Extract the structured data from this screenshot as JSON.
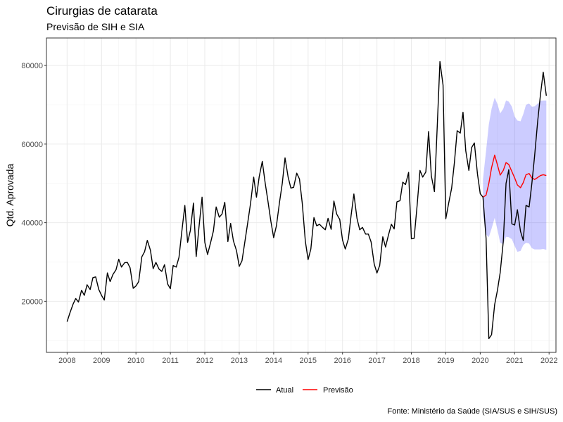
{
  "chart_data": {
    "type": "line",
    "title": "Cirurgias de catarata",
    "subtitle": "Previsão de SIH e SIA",
    "xlabel": "",
    "ylabel": "Qtd. Aprovada",
    "caption": "Fonte: Ministério da Saúde (SIA/SUS e SIH/SUS)",
    "xlim": [
      2007.4,
      2022.2
    ],
    "ylim": [
      7000,
      87000
    ],
    "x_ticks": [
      "2008",
      "2009",
      "2010",
      "2011",
      "2012",
      "2013",
      "2014",
      "2015",
      "2016",
      "2017",
      "2018",
      "2019",
      "2020",
      "2021",
      "2022"
    ],
    "y_ticks": [
      20000,
      40000,
      60000,
      80000
    ],
    "y_tick_labels": [
      "20000",
      "40000",
      "60000",
      "80000"
    ],
    "grid": true,
    "legend_position": "bottom",
    "colors": {
      "actual": "#000000",
      "forecast": "#ff0000",
      "interval": "#0000ff"
    },
    "series": [
      {
        "name": "Atual",
        "x": [
          2008.0,
          2008.08,
          2008.17,
          2008.25,
          2008.33,
          2008.42,
          2008.5,
          2008.58,
          2008.67,
          2008.75,
          2008.83,
          2008.92,
          2009.0,
          2009.08,
          2009.17,
          2009.25,
          2009.33,
          2009.42,
          2009.5,
          2009.58,
          2009.67,
          2009.75,
          2009.83,
          2009.92,
          2010.0,
          2010.08,
          2010.17,
          2010.25,
          2010.33,
          2010.42,
          2010.5,
          2010.58,
          2010.67,
          2010.75,
          2010.83,
          2010.92,
          2011.0,
          2011.08,
          2011.17,
          2011.25,
          2011.33,
          2011.42,
          2011.5,
          2011.58,
          2011.67,
          2011.75,
          2011.83,
          2011.92,
          2012.0,
          2012.08,
          2012.17,
          2012.25,
          2012.33,
          2012.42,
          2012.5,
          2012.58,
          2012.67,
          2012.75,
          2012.83,
          2012.92,
          2013.0,
          2013.08,
          2013.17,
          2013.25,
          2013.33,
          2013.42,
          2013.5,
          2013.58,
          2013.67,
          2013.75,
          2013.83,
          2013.92,
          2014.0,
          2014.08,
          2014.17,
          2014.25,
          2014.33,
          2014.42,
          2014.5,
          2014.58,
          2014.67,
          2014.75,
          2014.83,
          2014.92,
          2015.0,
          2015.08,
          2015.17,
          2015.25,
          2015.33,
          2015.42,
          2015.5,
          2015.58,
          2015.67,
          2015.75,
          2015.83,
          2015.92,
          2016.0,
          2016.08,
          2016.17,
          2016.25,
          2016.33,
          2016.42,
          2016.5,
          2016.58,
          2016.67,
          2016.75,
          2016.83,
          2016.92,
          2017.0,
          2017.08,
          2017.17,
          2017.25,
          2017.33,
          2017.42,
          2017.5,
          2017.58,
          2017.67,
          2017.75,
          2017.83,
          2017.92,
          2018.0,
          2018.08,
          2018.17,
          2018.25,
          2018.33,
          2018.42,
          2018.5,
          2018.58,
          2018.67,
          2018.75,
          2018.83,
          2018.92,
          2019.0,
          2019.08,
          2019.17,
          2019.25,
          2019.33,
          2019.42,
          2019.5,
          2019.58,
          2019.67,
          2019.75,
          2019.83,
          2019.92,
          2020.0,
          2020.08,
          2020.17,
          2020.25,
          2020.33,
          2020.42,
          2020.5,
          2020.58,
          2020.67,
          2020.75,
          2020.83,
          2020.92,
          2021.0,
          2021.08,
          2021.17,
          2021.25,
          2021.33,
          2021.42,
          2021.5,
          2021.58,
          2021.67,
          2021.75,
          2021.83,
          2021.92
        ],
        "values": [
          14800,
          17000,
          19200,
          20700,
          19800,
          22800,
          21500,
          24200,
          23000,
          26000,
          26200,
          23000,
          21500,
          20300,
          27200,
          25000,
          26800,
          28000,
          30700,
          28700,
          29800,
          29900,
          28500,
          23300,
          23900,
          25000,
          31300,
          32600,
          35500,
          33000,
          28300,
          29900,
          28200,
          27600,
          29300,
          24400,
          23200,
          29100,
          28700,
          31200,
          37600,
          44400,
          35000,
          38000,
          45000,
          31400,
          38800,
          46500,
          35000,
          31900,
          35000,
          37900,
          44000,
          41400,
          42200,
          45200,
          35200,
          39800,
          35400,
          32900,
          28900,
          30300,
          35500,
          40200,
          45000,
          51600,
          46500,
          51700,
          55600,
          50300,
          45700,
          40300,
          36200,
          39200,
          45200,
          50000,
          56500,
          51600,
          48800,
          49000,
          52600,
          51100,
          45000,
          35300,
          30600,
          33300,
          41300,
          39200,
          39600,
          38800,
          38200,
          41100,
          38300,
          45500,
          42200,
          40800,
          35600,
          33300,
          35900,
          41900,
          47300,
          41100,
          38200,
          38800,
          37100,
          37100,
          35100,
          29500,
          27200,
          29100,
          36400,
          33800,
          36700,
          39600,
          38400,
          45300,
          45600,
          50300,
          49700,
          52800,
          35900,
          36000,
          44700,
          53300,
          51600,
          52900,
          63200,
          51900,
          47900,
          64200,
          81000,
          75000,
          41000,
          44800,
          48800,
          55300,
          63400,
          62800,
          68100,
          58300,
          53300,
          59100,
          60300,
          52400,
          47400,
          46500,
          36000,
          10500,
          11500,
          19200,
          22800,
          27300,
          35200,
          50000,
          53500,
          39700,
          39400,
          43300,
          37800,
          35500,
          44400,
          44000,
          50000,
          57000,
          65900,
          72600,
          78300,
          72300
        ]
      },
      {
        "name": "Previsão",
        "x": [
          2020.08,
          2020.17,
          2020.25,
          2020.33,
          2020.42,
          2020.5,
          2020.58,
          2020.67,
          2020.75,
          2020.83,
          2020.92,
          2021.0,
          2021.08,
          2021.17,
          2021.25,
          2021.33,
          2021.42,
          2021.5,
          2021.58,
          2021.67,
          2021.75,
          2021.83,
          2021.92
        ],
        "values": [
          46500,
          47000,
          50000,
          54000,
          57200,
          54700,
          52100,
          53300,
          55300,
          54800,
          53000,
          51400,
          49600,
          48900,
          50200,
          52200,
          52500,
          51400,
          51000,
          51500,
          52000,
          52200,
          52000
        ],
        "lower": [
          42000,
          37000,
          36300,
          38500,
          41200,
          38200,
          34900,
          34500,
          36400,
          36300,
          35800,
          34100,
          32600,
          32800,
          34300,
          34900,
          34700,
          33500,
          33200,
          33200,
          33200,
          33300,
          33100
        ],
        "upper": [
          51000,
          58300,
          65000,
          69000,
          71800,
          70200,
          67800,
          69000,
          71100,
          70800,
          69500,
          67000,
          66000,
          65800,
          67600,
          70000,
          70300,
          69500,
          69600,
          70300,
          71000,
          71100,
          71100
        ]
      }
    ]
  }
}
